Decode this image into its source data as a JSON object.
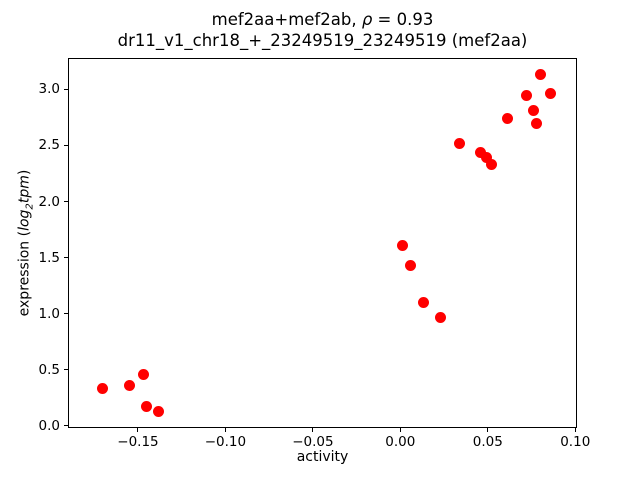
{
  "title": {
    "line1": "mef2aa+mef2ab, ρ = 0.93",
    "line1_parts": [
      {
        "t": "mef2aa+mef2ab, ",
        "i": false
      },
      {
        "t": "ρ",
        "i": true
      },
      {
        "t": " = 0.93",
        "i": false
      }
    ],
    "line2": "dr11_v1_chr18_+_23249519_23249519 (mef2aa)"
  },
  "axes": {
    "xlabel": "activity",
    "ylabel": "expression (log₂tpm)",
    "ylabel_parts": [
      {
        "t": "expression (",
        "i": false
      },
      {
        "t": "log",
        "i": true
      },
      {
        "t": "2",
        "i": true,
        "sub": true
      },
      {
        "t": "tpm",
        "i": true
      },
      {
        "t": ")",
        "i": false
      }
    ]
  },
  "chart_data": {
    "type": "scatter",
    "title": "mef2aa+mef2ab, ρ = 0.93",
    "subtitle": "dr11_v1_chr18_+_23249519_23249519 (mef2aa)",
    "rho": 0.93,
    "xlabel": "activity",
    "ylabel": "expression (log2tpm)",
    "marker_color": "#ff0000",
    "grid": false,
    "xlim": [
      -0.19,
      0.101
    ],
    "ylim": [
      -0.02,
      3.28
    ],
    "xticks": [
      -0.15,
      -0.1,
      -0.05,
      0.0,
      0.05,
      0.1
    ],
    "xtick_labels": [
      "−0.15",
      "−0.10",
      "−0.05",
      "0.00",
      "0.05",
      "0.10"
    ],
    "yticks": [
      0.0,
      0.5,
      1.0,
      1.5,
      2.0,
      2.5,
      3.0
    ],
    "ytick_labels": [
      "0.0",
      "0.5",
      "1.0",
      "1.5",
      "2.0",
      "2.5",
      "3.0"
    ],
    "points": [
      {
        "x": -0.17,
        "y": 0.33
      },
      {
        "x": -0.155,
        "y": 0.36
      },
      {
        "x": -0.147,
        "y": 0.46
      },
      {
        "x": -0.145,
        "y": 0.17
      },
      {
        "x": -0.138,
        "y": 0.13
      },
      {
        "x": 0.001,
        "y": 1.61
      },
      {
        "x": 0.006,
        "y": 1.43
      },
      {
        "x": 0.013,
        "y": 1.1
      },
      {
        "x": 0.023,
        "y": 0.97
      },
      {
        "x": 0.034,
        "y": 2.52
      },
      {
        "x": 0.046,
        "y": 2.44
      },
      {
        "x": 0.049,
        "y": 2.39
      },
      {
        "x": 0.052,
        "y": 2.33
      },
      {
        "x": 0.061,
        "y": 2.74
      },
      {
        "x": 0.072,
        "y": 2.95
      },
      {
        "x": 0.076,
        "y": 2.81
      },
      {
        "x": 0.078,
        "y": 2.7
      },
      {
        "x": 0.08,
        "y": 3.13
      },
      {
        "x": 0.086,
        "y": 2.96
      }
    ]
  }
}
